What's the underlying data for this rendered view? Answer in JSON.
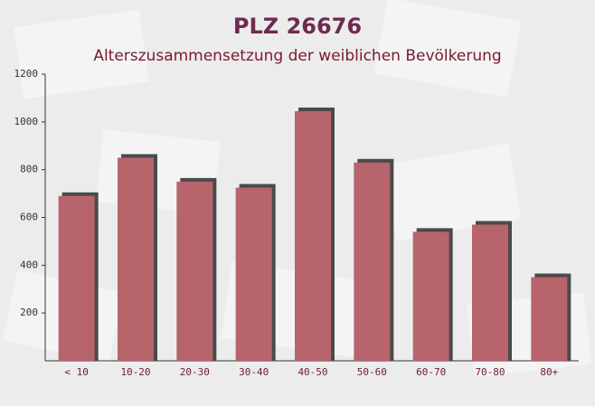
{
  "chart_data": {
    "type": "bar",
    "title": "PLZ 26676",
    "subtitle": "Alterszusammensetzung der weiblichen Bevölkerung",
    "categories": [
      "< 10",
      "10-20",
      "20-30",
      "30-40",
      "40-50",
      "50-60",
      "60-70",
      "70-80",
      "80+"
    ],
    "values": [
      690,
      850,
      750,
      725,
      1045,
      830,
      540,
      570,
      350
    ],
    "color": "#b7646c",
    "ylim": [
      0,
      1200
    ],
    "yticks": [
      200,
      400,
      600,
      800,
      1000,
      1200
    ],
    "grid": false
  }
}
